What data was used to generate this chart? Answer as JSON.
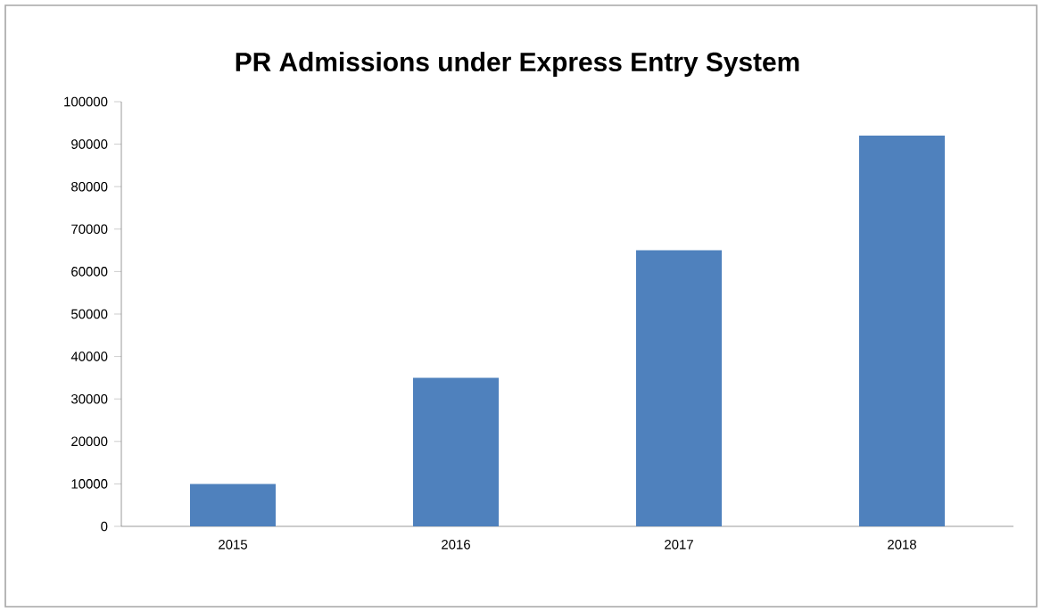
{
  "chart_data": {
    "type": "bar",
    "title": "PR Admissions under Express Entry System",
    "categories": [
      "2015",
      "2016",
      "2017",
      "2018"
    ],
    "values": [
      10000,
      35000,
      65000,
      92000
    ],
    "color": "#4f81bd",
    "ylim": [
      0,
      100000
    ],
    "yticks": [
      0,
      10000,
      20000,
      30000,
      40000,
      50000,
      60000,
      70000,
      80000,
      90000,
      100000
    ],
    "grid": false
  }
}
